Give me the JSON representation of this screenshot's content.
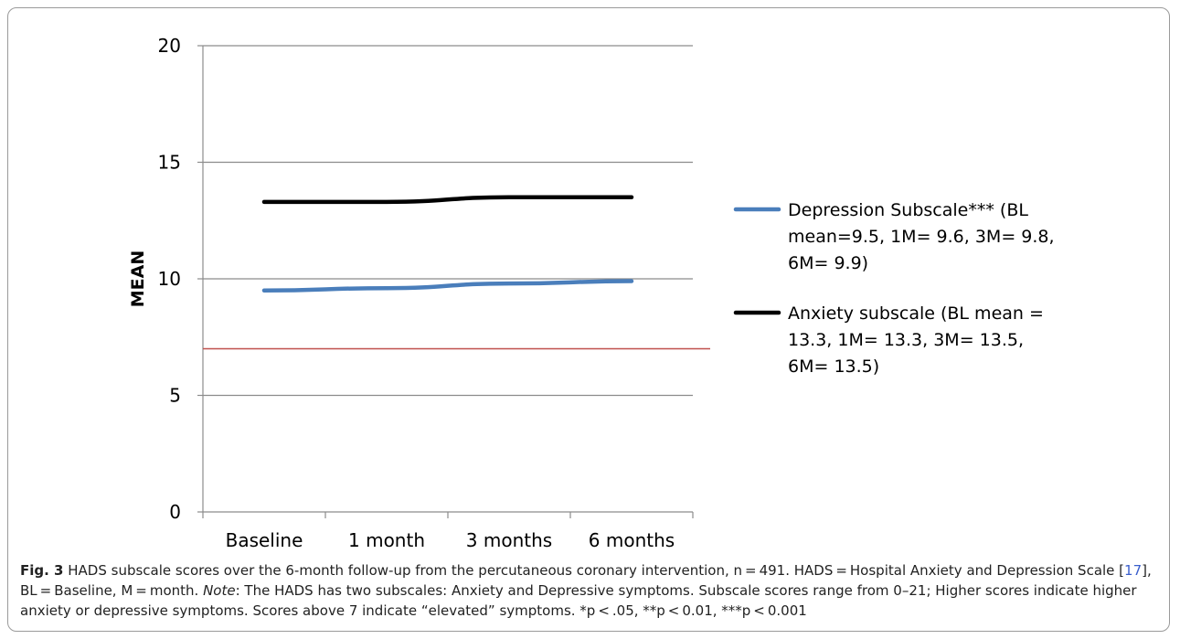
{
  "chart_data": {
    "type": "line",
    "categories": [
      "Baseline",
      "1 month",
      "3 months",
      "6 months"
    ],
    "series": [
      {
        "name": "Depression Subscale*** (BL mean=9.5, 1M= 9.6, 3M= 9.8, 6M= 9.9)",
        "color": "#4a7ebb",
        "values": [
          9.5,
          9.6,
          9.8,
          9.9
        ]
      },
      {
        "name": "Anxiety subscale (BL mean = 13.3, 1M= 13.3, 3M= 13.5, 6M= 13.5)",
        "color": "#000000",
        "values": [
          13.3,
          13.3,
          13.5,
          13.5
        ]
      }
    ],
    "legend_lines": [
      [
        "Depression Subscale*** (BL",
        "mean=9.5, 1M= 9.6, 3M= 9.8,",
        "6M= 9.9)"
      ],
      [
        "Anxiety subscale (BL mean =",
        "13.3, 1M= 13.3, 3M= 13.5,",
        "6M= 13.5)"
      ]
    ],
    "ylabel": "MEAN",
    "xlabel": "",
    "ylim": [
      0,
      20
    ],
    "yticks": [
      0,
      5,
      10,
      15,
      20
    ],
    "grid": true,
    "legend_position": "right",
    "reference_line": {
      "value": 7,
      "color": "#c0504d"
    }
  },
  "caption": {
    "fig_label": "Fig. 3",
    "text_1": " HADS subscale scores over the 6-month follow-up from the percutaneous coronary intervention, n = 491. HADS = Hospital Anxiety and Depression Scale [",
    "ref": "17",
    "text_2": "], BL = Baseline, M = month. ",
    "note_label": "Note",
    "text_3": ": The HADS has two subscales: Anxiety and Depressive symptoms. Subscale scores range from 0–21; Higher scores indicate higher anxiety or depressive symptoms. Scores above 7 indicate “elevated” symptoms. *p < .05, **p < 0.01, ***p < 0.001"
  }
}
